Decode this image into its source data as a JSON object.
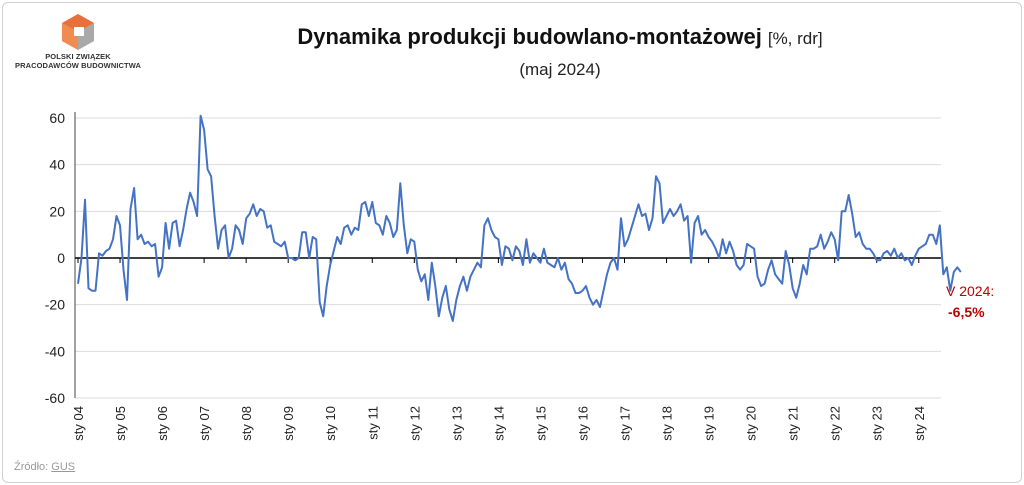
{
  "logo": {
    "org_line1": "POLSKI ZWIĄZEK",
    "org_line2": "PRACODAWCÓW BUDOWNICTWA",
    "colors": [
      "#e8703a",
      "#c9c9c9",
      "#a9a9a9"
    ]
  },
  "header": {
    "title": "Dynamika produkcji budowlano-montażowej",
    "unit": "[%, rdr]",
    "subtitle": "(maj 2024)"
  },
  "source": {
    "prefix": "Źródło: ",
    "link": "GUS"
  },
  "chart_data": {
    "type": "line",
    "title": "Dynamika produkcji budowlano-montażowej",
    "ylim": [
      -60,
      60
    ],
    "yticks": [
      60,
      40,
      20,
      0,
      -20,
      -40,
      -60
    ],
    "x_labels": [
      "sty 04",
      "sty 05",
      "sty 06",
      "sty 07",
      "sty 08",
      "sty 09",
      "sty 10",
      "sty 11",
      "sty 12",
      "sty 13",
      "sty 14",
      "sty 15",
      "sty 16",
      "sty 17",
      "sty 18",
      "sty 19",
      "sty 20",
      "sty 21",
      "sty 22",
      "sty 23",
      "sty 24"
    ],
    "x_start": "2004-01",
    "x_end": "2024-05",
    "grid": "horizontal",
    "line_color": "#4472c4",
    "annotation": {
      "line1": "V 2024:",
      "line2": "-6,5%",
      "color": "#c00000"
    },
    "series": [
      {
        "values": [
          -11,
          0,
          25,
          -13,
          -14,
          -14,
          2,
          1,
          3,
          4,
          8,
          18,
          14,
          -5,
          -18,
          21,
          30,
          8,
          10,
          6,
          7,
          5,
          6,
          -8,
          -4,
          15,
          4,
          15,
          16,
          5,
          12,
          21,
          28,
          24,
          18,
          61,
          55,
          38,
          35,
          18,
          4,
          12,
          14,
          0,
          4,
          14,
          12,
          6,
          17,
          19,
          23,
          18,
          21,
          20,
          13,
          14,
          7,
          6,
          5,
          7,
          0,
          0,
          -1,
          0,
          11,
          11,
          0,
          9,
          8,
          -19,
          -25,
          -12,
          -3,
          3,
          9,
          6,
          13,
          14,
          10,
          13,
          12,
          23,
          24,
          18,
          24,
          15,
          14,
          10,
          18,
          15,
          9,
          12,
          32,
          14,
          2,
          8,
          7,
          -5,
          -10,
          -7,
          -18,
          -2,
          -12,
          -25,
          -17,
          -12,
          -22,
          -27,
          -18,
          -12,
          -8,
          -14,
          -8,
          -5,
          -2,
          -4,
          14,
          17,
          12,
          9,
          8,
          -3,
          5,
          4,
          -1,
          5,
          3,
          -3,
          8,
          -2,
          2,
          0,
          -2,
          4,
          -2,
          -3,
          -4,
          0,
          -5,
          -2,
          -9,
          -11,
          -15,
          -15,
          -14,
          -12,
          -17,
          -20,
          -18,
          -21,
          -14,
          -7,
          -2,
          0,
          -5,
          17,
          5,
          8,
          13,
          18,
          23,
          18,
          19,
          12,
          17,
          35,
          32,
          15,
          18,
          21,
          18,
          20,
          23,
          16,
          18,
          -2,
          15,
          18,
          10,
          12,
          9,
          7,
          4,
          0,
          8,
          2,
          7,
          3,
          -3,
          -5,
          -3,
          6,
          5,
          4,
          -8,
          -12,
          -11,
          -5,
          -1,
          -7,
          -9,
          -11,
          3,
          -3,
          -13,
          -17,
          -11,
          -3,
          -7,
          4,
          4,
          5,
          10,
          4,
          7,
          11,
          8,
          -1,
          20,
          20,
          27,
          19,
          9,
          11,
          6,
          4,
          4,
          2,
          -1,
          -1,
          2,
          3,
          1,
          4,
          0,
          2,
          -1,
          0,
          -3,
          1,
          4,
          5,
          6,
          10,
          10,
          6,
          14,
          -7,
          -4,
          -14,
          -6,
          -4,
          -6
        ]
      }
    ]
  }
}
